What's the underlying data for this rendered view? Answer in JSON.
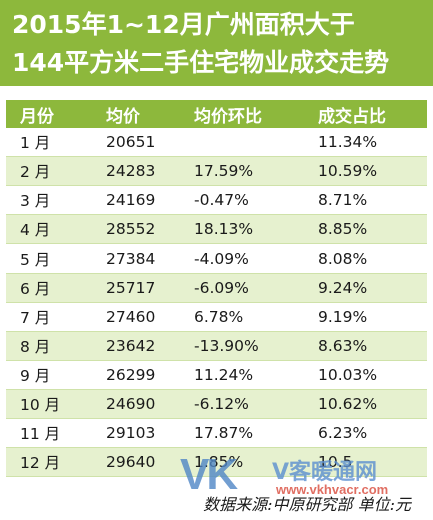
{
  "title": {
    "line1": "2015年1~12月广州面积大于",
    "line2": "144平方米二手住宅物业成交走势"
  },
  "table": {
    "headers": [
      "月份",
      "均价",
      "均价环比",
      "成交占比"
    ],
    "rows": [
      [
        "1 月",
        "20651",
        "",
        "11.34%"
      ],
      [
        "2 月",
        "24283",
        "17.59%",
        "10.59%"
      ],
      [
        "3 月",
        "24169",
        "-0.47%",
        "8.71%"
      ],
      [
        "4 月",
        "28552",
        "18.13%",
        "8.85%"
      ],
      [
        "5 月",
        "27384",
        "-4.09%",
        "8.08%"
      ],
      [
        "6 月",
        "25717",
        "-6.09%",
        "9.24%"
      ],
      [
        "7 月",
        "27460",
        "6.78%",
        "9.19%"
      ],
      [
        "8 月",
        "23642",
        "-13.90%",
        "8.63%"
      ],
      [
        "9 月",
        "26299",
        "11.24%",
        "10.03%"
      ],
      [
        "10 月",
        "24690",
        "-6.12%",
        "10.62%"
      ],
      [
        "11 月",
        "29103",
        "17.87%",
        "6.23%"
      ],
      [
        "12 月",
        "29640",
        "1.85%",
        "10.5"
      ]
    ]
  },
  "footer": "数据来源:中原研究部  单位:元",
  "watermark": {
    "logo": "VK",
    "name": "V客暖通网",
    "url": "www.vkhvacr.com"
  },
  "colors": {
    "accent": "#8db83c",
    "stripe": "#e6f1cf"
  }
}
